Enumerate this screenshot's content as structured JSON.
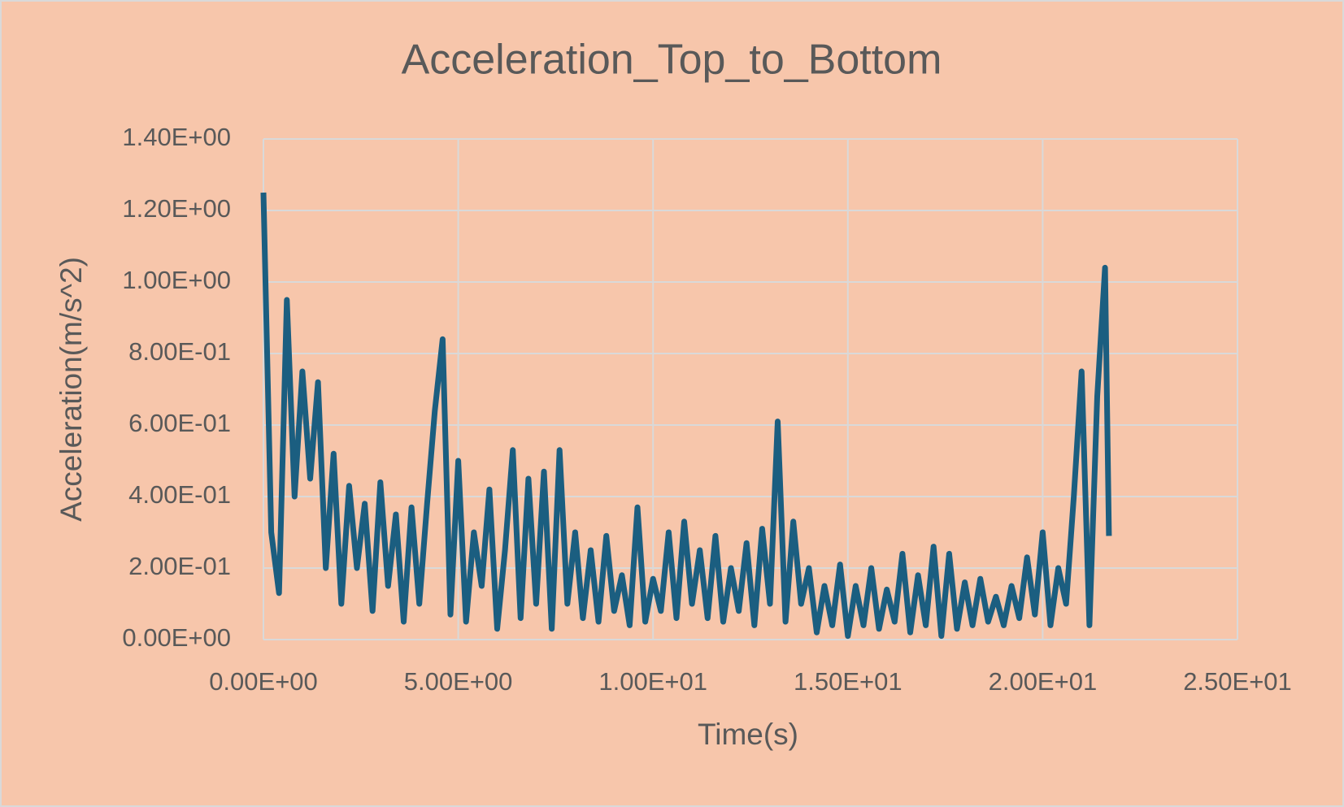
{
  "chart_data": {
    "type": "line",
    "title": "Acceleration_Top_to_Bottom",
    "x_label": "Time(s)",
    "y_label": "Acceleration(m/s^2)",
    "x": [
      0.0,
      0.2,
      0.4,
      0.6,
      0.8,
      1.0,
      1.2,
      1.4,
      1.6,
      1.8,
      2.0,
      2.2,
      2.4,
      2.6,
      2.8,
      3.0,
      3.2,
      3.4,
      3.6,
      3.8,
      4.0,
      4.2,
      4.4,
      4.6,
      4.8,
      5.0,
      5.2,
      5.4,
      5.6,
      5.8,
      6.0,
      6.2,
      6.4,
      6.6,
      6.8,
      7.0,
      7.2,
      7.4,
      7.6,
      7.8,
      8.0,
      8.2,
      8.4,
      8.6,
      8.8,
      9.0,
      9.2,
      9.4,
      9.6,
      9.8,
      10.0,
      10.2,
      10.4,
      10.6,
      10.8,
      11.0,
      11.2,
      11.4,
      11.6,
      11.8,
      12.0,
      12.2,
      12.4,
      12.6,
      12.8,
      13.0,
      13.2,
      13.4,
      13.6,
      13.8,
      14.0,
      14.2,
      14.4,
      14.6,
      14.8,
      15.0,
      15.2,
      15.4,
      15.6,
      15.8,
      16.0,
      16.2,
      16.4,
      16.6,
      16.8,
      17.0,
      17.2,
      17.4,
      17.6,
      17.8,
      18.0,
      18.2,
      18.4,
      18.6,
      18.8,
      19.0,
      19.2,
      19.4,
      19.6,
      19.8,
      20.0,
      20.2,
      20.4,
      20.6,
      20.8,
      21.0,
      21.2,
      21.4,
      21.6,
      21.7
    ],
    "series": [
      {
        "name": "Acceleration",
        "color": "#1b5e80",
        "values": [
          1.25,
          0.3,
          0.13,
          0.95,
          0.4,
          0.75,
          0.45,
          0.72,
          0.2,
          0.52,
          0.1,
          0.43,
          0.2,
          0.38,
          0.08,
          0.44,
          0.15,
          0.35,
          0.05,
          0.37,
          0.1,
          0.38,
          0.64,
          0.84,
          0.07,
          0.5,
          0.05,
          0.3,
          0.15,
          0.42,
          0.03,
          0.25,
          0.53,
          0.06,
          0.45,
          0.1,
          0.47,
          0.03,
          0.53,
          0.1,
          0.3,
          0.06,
          0.25,
          0.05,
          0.29,
          0.08,
          0.18,
          0.04,
          0.37,
          0.05,
          0.17,
          0.08,
          0.3,
          0.06,
          0.33,
          0.1,
          0.25,
          0.06,
          0.29,
          0.05,
          0.2,
          0.08,
          0.27,
          0.04,
          0.31,
          0.1,
          0.61,
          0.05,
          0.33,
          0.1,
          0.2,
          0.02,
          0.15,
          0.04,
          0.21,
          0.01,
          0.15,
          0.04,
          0.2,
          0.03,
          0.14,
          0.05,
          0.24,
          0.02,
          0.18,
          0.04,
          0.26,
          0.01,
          0.24,
          0.03,
          0.16,
          0.04,
          0.17,
          0.05,
          0.12,
          0.04,
          0.15,
          0.06,
          0.23,
          0.07,
          0.3,
          0.04,
          0.2,
          0.1,
          0.4,
          0.75,
          0.04,
          0.68,
          1.04,
          0.29
        ]
      }
    ],
    "xlim": [
      0,
      25
    ],
    "xticks": [
      {
        "value": 0,
        "label": "0.00E+00"
      },
      {
        "value": 5,
        "label": "5.00E+00"
      },
      {
        "value": 10,
        "label": "1.00E+01"
      },
      {
        "value": 15,
        "label": "1.50E+01"
      },
      {
        "value": 20,
        "label": "2.00E+01"
      },
      {
        "value": 25,
        "label": "2.50E+01"
      }
    ],
    "ylim": [
      0,
      1.4
    ],
    "yticks": [
      {
        "value": 0,
        "label": "0.00E+00"
      },
      {
        "value": 0.2,
        "label": "2.00E-01"
      },
      {
        "value": 0.4,
        "label": "4.00E-01"
      },
      {
        "value": 0.6,
        "label": "6.00E-01"
      },
      {
        "value": 0.8,
        "label": "8.00E-01"
      },
      {
        "value": 1.0,
        "label": "1.00E+00"
      },
      {
        "value": 1.2,
        "label": "1.20E+00"
      },
      {
        "value": 1.4,
        "label": "1.40E+00"
      }
    ],
    "grid": true
  }
}
